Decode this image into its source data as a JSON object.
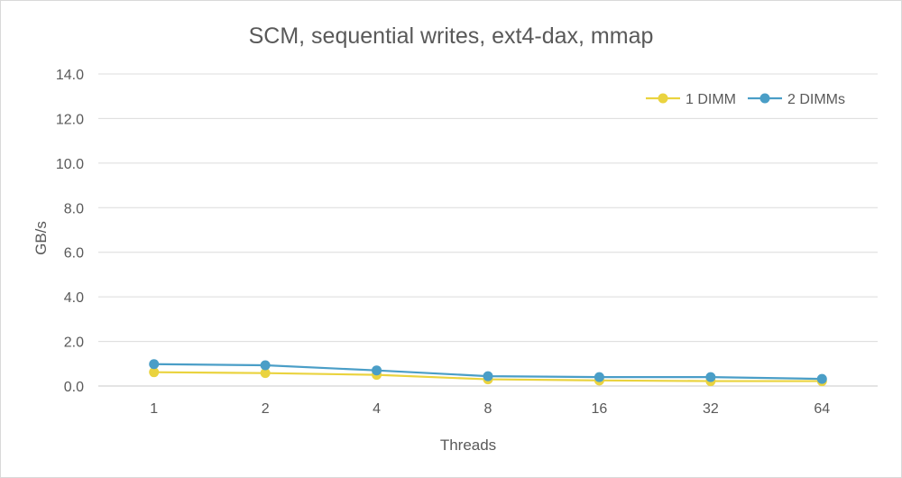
{
  "chart_data": {
    "type": "line",
    "title": "SCM, sequential writes, ext4-dax, mmap",
    "xlabel": "Threads",
    "ylabel": "GB/s",
    "categories": [
      "1",
      "2",
      "4",
      "8",
      "16",
      "32",
      "64"
    ],
    "ylim": [
      0,
      14
    ],
    "yticks": [
      "0.0",
      "2.0",
      "4.0",
      "6.0",
      "8.0",
      "10.0",
      "12.0",
      "14.0"
    ],
    "grid": true,
    "legend_position": "top-right",
    "series": [
      {
        "name": "1 DIMM",
        "color": "#ead33f",
        "values": [
          0.62,
          0.58,
          0.5,
          0.3,
          0.25,
          0.22,
          0.22
        ]
      },
      {
        "name": "2 DIMMs",
        "color": "#4a9ec7",
        "values": [
          0.98,
          0.93,
          0.7,
          0.44,
          0.4,
          0.4,
          0.32
        ]
      }
    ]
  }
}
